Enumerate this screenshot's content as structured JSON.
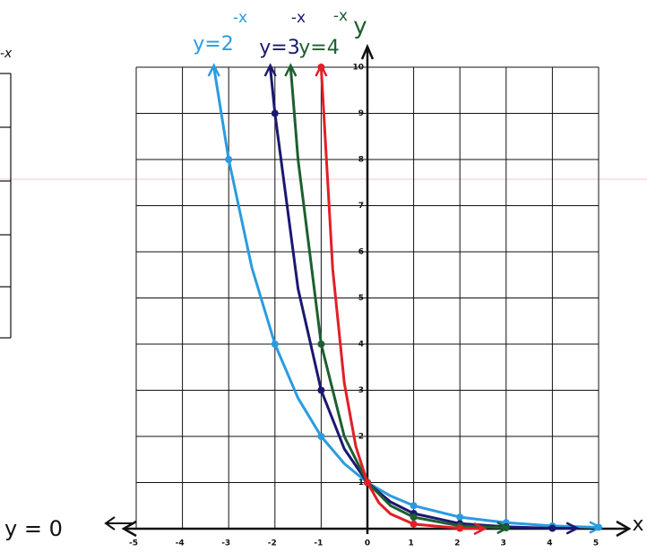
{
  "chart_data": {
    "type": "line",
    "x_label": "x",
    "y_label": "y",
    "asymptote_label": "y = 0",
    "side_fragment": "-x",
    "xlim": [
      -5,
      5
    ],
    "ylim": [
      0,
      10
    ],
    "xticks": [
      -5,
      -4,
      -3,
      -2,
      -1,
      0,
      1,
      2,
      3,
      4,
      5
    ],
    "yticks": [
      1,
      2,
      3,
      4,
      5,
      6,
      7,
      8,
      9,
      10
    ],
    "grid": true,
    "series": [
      {
        "name": "y=2",
        "name_sup": "-x",
        "color": "#2a9be0",
        "x": [
          -3.32,
          -3,
          -2.5,
          -2,
          -1.5,
          -1,
          -0.5,
          0,
          0.5,
          1,
          2,
          3,
          4,
          5
        ],
        "values": [
          10,
          8,
          5.66,
          4,
          2.83,
          2,
          1.41,
          1,
          0.71,
          0.5,
          0.25,
          0.13,
          0.06,
          0.03
        ]
      },
      {
        "name": "y=3",
        "name_sup": "-x",
        "color": "#1b1870",
        "x": [
          -2.1,
          -2,
          -1.5,
          -1,
          -0.5,
          0,
          0.5,
          1,
          2,
          3,
          4,
          4.5
        ],
        "values": [
          10,
          9,
          5.2,
          3,
          1.73,
          1,
          0.58,
          0.33,
          0.11,
          0.04,
          0.01,
          0.01
        ]
      },
      {
        "name": "y=4",
        "name_sup": "-x",
        "color": "#1d5f30",
        "x": [
          -1.66,
          -1.5,
          -1,
          -0.5,
          0,
          0.5,
          1,
          2,
          3
        ],
        "values": [
          10,
          8,
          4,
          2,
          1,
          0.5,
          0.25,
          0.06,
          0.02
        ]
      },
      {
        "color": "#e21f26",
        "x": [
          -1,
          -0.75,
          -0.5,
          -0.25,
          0,
          0.25,
          0.5,
          1,
          2,
          2.5
        ],
        "values": [
          10,
          5.62,
          3.16,
          1.78,
          1,
          0.56,
          0.32,
          0.1,
          0.01,
          0
        ]
      }
    ]
  }
}
